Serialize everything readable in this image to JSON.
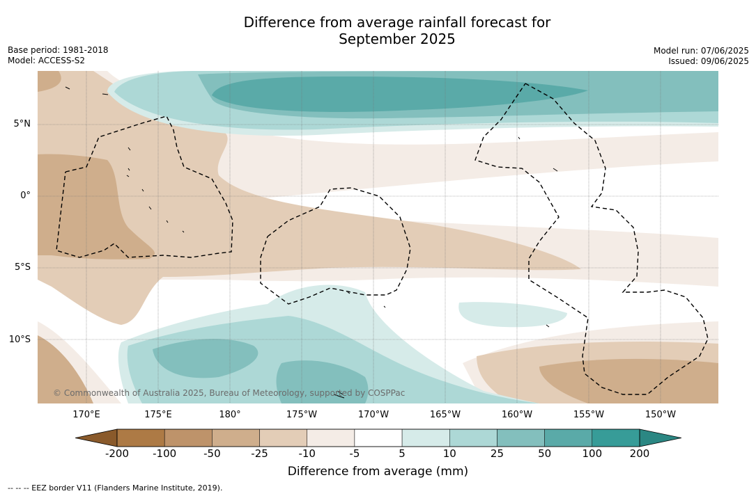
{
  "title_line1": "Difference from average rainfall forecast for",
  "title_line2": "September 2025",
  "base_period": "Base period: 1981-2018",
  "model": "Model: ACCESS-S2",
  "model_run": "Model run: 07/06/2025",
  "issued": "Issued: 09/06/2025",
  "copyright": "© Commonwealth of Australia 2025, Bureau of Meteorology, supported by COSPPac",
  "lat_labels": [
    "5°N",
    "0°",
    "5°S",
    "10°S"
  ],
  "lon_labels": [
    "170°E",
    "175°E",
    "180°",
    "175°W",
    "170°W",
    "165°W",
    "160°W",
    "155°W",
    "150°W"
  ],
  "colorbar": {
    "ticks": [
      "-200",
      "-100",
      "-50",
      "-25",
      "-10",
      "-5",
      "5",
      "10",
      "25",
      "50",
      "100",
      "200"
    ],
    "colors": [
      "#8a5a2b",
      "#ad7a45",
      "#be936a",
      "#cfae8c",
      "#e3cdb7",
      "#f4ece6",
      "#ffffff",
      "#d6ebe9",
      "#add8d6",
      "#83bfbd",
      "#5aaaa8",
      "#379c98",
      "#2b8783"
    ],
    "title": "Difference from average (mm)"
  },
  "legend_note": "--  --  -- EEZ border V11 (Flanders Marine Institute, 2019)."
}
